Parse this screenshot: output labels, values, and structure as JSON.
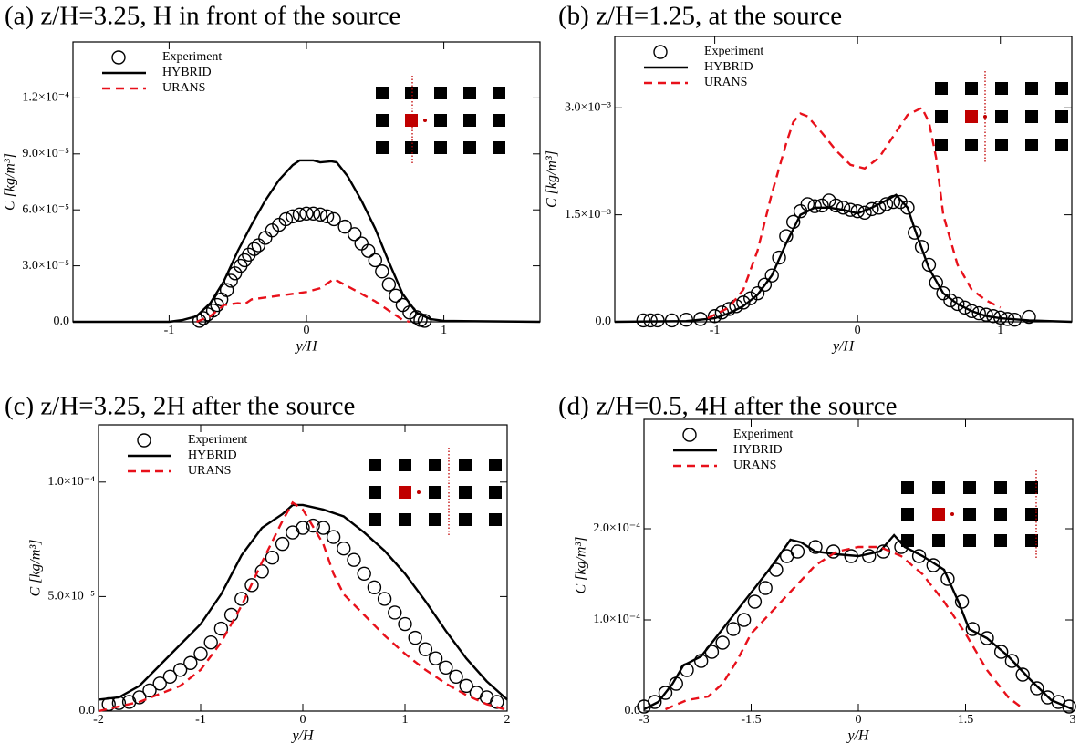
{
  "chart_data": [
    {
      "type": "line",
      "title": "(a) z/H=3.25, H in front of the source",
      "xlabel": "y/H",
      "ylabel": "C [kg/m³]",
      "xlim": [
        -1.7,
        1.7
      ],
      "xticks": [
        -1,
        0,
        1
      ],
      "ylim": [
        0,
        0.00015
      ],
      "yticks": [
        {
          "value": 0,
          "label": "0.0"
        },
        {
          "value": 3e-05,
          "label": "3.0×10⁻⁵"
        },
        {
          "value": 6e-05,
          "label": "6.0×10⁻⁵"
        },
        {
          "value": 9e-05,
          "label": "9.0×10⁻⁵"
        },
        {
          "value": 0.00012,
          "label": "1.2×10⁻⁴"
        }
      ],
      "series": [
        {
          "name": "Experiment",
          "color": "#000000",
          "linestyle": "none",
          "marker": "circle",
          "x": [
            -0.78,
            -0.75,
            -0.72,
            -0.68,
            -0.65,
            -0.62,
            -0.58,
            -0.55,
            -0.52,
            -0.48,
            -0.45,
            -0.42,
            -0.38,
            -0.35,
            -0.3,
            -0.25,
            -0.2,
            -0.15,
            -0.1,
            -0.05,
            0,
            0.05,
            0.1,
            0.15,
            0.2,
            0.28,
            0.35,
            0.4,
            0.45,
            0.5,
            0.55,
            0.6,
            0.65,
            0.7,
            0.75,
            0.8,
            0.83,
            0.86
          ],
          "values": [
            5e-07,
            2e-06,
            4e-06,
            6e-06,
            9e-06,
            1.2e-05,
            1.7e-05,
            2.2e-05,
            2.6e-05,
            3e-05,
            3.3e-05,
            3.6e-05,
            3.9e-05,
            4.1e-05,
            4.5e-05,
            4.9e-05,
            5.2e-05,
            5.5e-05,
            5.65e-05,
            5.75e-05,
            5.8e-05,
            5.8e-05,
            5.75e-05,
            5.65e-05,
            5.5e-05,
            5.1e-05,
            4.7e-05,
            4.2e-05,
            3.8e-05,
            3.3e-05,
            2.7e-05,
            2e-05,
            1.4e-05,
            9e-06,
            5e-06,
            2.5e-06,
            1e-06,
            5e-07
          ]
        },
        {
          "name": "HYBRID",
          "color": "#000000",
          "linestyle": "solid",
          "marker": "none",
          "x": [
            -1.7,
            -1,
            -0.9,
            -0.8,
            -0.7,
            -0.6,
            -0.5,
            -0.4,
            -0.3,
            -0.2,
            -0.1,
            -0.05,
            0.05,
            0.1,
            0.18,
            0.22,
            0.3,
            0.4,
            0.5,
            0.6,
            0.7,
            0.8,
            0.9,
            1,
            1.7
          ],
          "values": [
            0,
            0,
            1e-06,
            3e-06,
            1e-05,
            2.2e-05,
            3.8e-05,
            5.2e-05,
            6.5e-05,
            7.6e-05,
            8.4e-05,
            8.65e-05,
            8.65e-05,
            8.55e-05,
            8.6e-05,
            8.55e-05,
            7.8e-05,
            6.5e-05,
            5e-05,
            3.2e-05,
            1.5e-05,
            5e-06,
            1.5e-06,
            5e-07,
            0
          ]
        },
        {
          "name": "URANS",
          "color": "#e8101a",
          "linestyle": "dashed",
          "marker": "none",
          "x": [
            -0.8,
            -0.7,
            -0.6,
            -0.5,
            -0.45,
            -0.4,
            -0.2,
            0,
            0.1,
            0.2,
            0.3,
            0.4,
            0.5,
            0.6,
            0.7,
            0.75
          ],
          "values": [
            0,
            3e-06,
            9e-06,
            1e-05,
            9.5e-06,
            1.2e-05,
            1.4e-05,
            1.6e-05,
            1.8e-05,
            2.3e-05,
            1.9e-05,
            1.5e-05,
            1.1e-05,
            6e-06,
            1e-06,
            0
          ]
        }
      ]
    },
    {
      "type": "line",
      "title": "(b) z/H=1.25, at the source",
      "xlabel": "y/H",
      "ylabel": "C [kg/m³]",
      "xlim": [
        -1.7,
        1.5
      ],
      "xticks": [
        -1,
        0,
        1
      ],
      "ylim": [
        0,
        0.004
      ],
      "yticks": [
        {
          "value": 0,
          "label": "0.0"
        },
        {
          "value": 0.0015,
          "label": "1.5×10⁻³"
        },
        {
          "value": 0.003,
          "label": "3.0×10⁻³"
        }
      ],
      "series": [
        {
          "name": "Experiment",
          "color": "#000000",
          "linestyle": "none",
          "marker": "circle",
          "x": [
            -1.5,
            -1.45,
            -1.4,
            -1.3,
            -1.2,
            -1.1,
            -1.0,
            -0.95,
            -0.9,
            -0.85,
            -0.8,
            -0.75,
            -0.7,
            -0.65,
            -0.6,
            -0.55,
            -0.5,
            -0.45,
            -0.4,
            -0.35,
            -0.3,
            -0.25,
            -0.2,
            -0.15,
            -0.1,
            -0.05,
            0,
            0.05,
            0.1,
            0.15,
            0.2,
            0.25,
            0.3,
            0.35,
            0.4,
            0.45,
            0.5,
            0.55,
            0.6,
            0.65,
            0.7,
            0.75,
            0.8,
            0.85,
            0.9,
            0.95,
            1.0,
            1.05,
            1.1,
            1.2
          ],
          "values": [
            2e-05,
            2e-05,
            2e-05,
            2e-05,
            3e-05,
            4e-05,
            8e-05,
            0.00013,
            0.00018,
            0.00022,
            0.00027,
            0.00033,
            0.0004,
            0.00052,
            0.00065,
            0.0009,
            0.0012,
            0.0014,
            0.00155,
            0.00165,
            0.00162,
            0.00163,
            0.0017,
            0.00163,
            0.0016,
            0.00157,
            0.00155,
            0.00153,
            0.00158,
            0.0016,
            0.00165,
            0.00168,
            0.00168,
            0.0016,
            0.00125,
            0.00105,
            0.0008,
            0.00055,
            0.0004,
            0.0003,
            0.00025,
            0.0002,
            0.00015,
            0.00012,
            0.0001,
            8e-05,
            6e-05,
            4e-05,
            3e-05,
            7e-05
          ]
        },
        {
          "name": "HYBRID",
          "color": "#000000",
          "linestyle": "solid",
          "marker": "none",
          "x": [
            -1.7,
            -1.2,
            -1,
            -0.9,
            -0.8,
            -0.7,
            -0.6,
            -0.5,
            -0.4,
            -0.3,
            -0.2,
            -0.1,
            0,
            0.1,
            0.2,
            0.27,
            0.35,
            0.4,
            0.5,
            0.6,
            0.7,
            0.8,
            0.9,
            1,
            1.2,
            1.5
          ],
          "values": [
            0,
            1e-05,
            5e-05,
            0.00012,
            0.00022,
            0.00038,
            0.00065,
            0.0011,
            0.0015,
            0.0016,
            0.0016,
            0.00157,
            0.00152,
            0.0016,
            0.0017,
            0.00178,
            0.0016,
            0.0013,
            0.00075,
            0.0004,
            0.00025,
            0.00015,
            8e-05,
            5e-05,
            2e-05,
            0
          ]
        },
        {
          "name": "URANS",
          "color": "#e8101a",
          "linestyle": "dashed",
          "marker": "none",
          "x": [
            -1.05,
            -0.9,
            -0.8,
            -0.7,
            -0.6,
            -0.5,
            -0.45,
            -0.4,
            -0.35,
            -0.25,
            -0.15,
            -0.05,
            0.05,
            0.15,
            0.25,
            0.35,
            0.45,
            0.5,
            0.55,
            0.6,
            0.7,
            0.8,
            0.9,
            1.0
          ],
          "values": [
            5e-05,
            0.0002,
            0.00045,
            0.001,
            0.0018,
            0.0025,
            0.0028,
            0.00292,
            0.00288,
            0.00265,
            0.0024,
            0.0022,
            0.00215,
            0.0023,
            0.0026,
            0.0029,
            0.003,
            0.0028,
            0.0023,
            0.0015,
            0.0008,
            0.00045,
            0.0003,
            0.0002
          ]
        }
      ]
    },
    {
      "type": "line",
      "title": "(c) z/H=3.25, 2H after the source",
      "xlabel": "y/H",
      "ylabel": "C [kg/m³]",
      "xlim": [
        -2,
        2
      ],
      "xticks": [
        -2,
        -1,
        0,
        1,
        2
      ],
      "ylim": [
        0,
        0.000125
      ],
      "yticks": [
        {
          "value": 0,
          "label": "0.0"
        },
        {
          "value": 5e-05,
          "label": "5.0×10⁻⁵"
        },
        {
          "value": 0.0001,
          "label": "1.0×10⁻⁴"
        }
      ],
      "series": [
        {
          "name": "Experiment",
          "color": "#000000",
          "linestyle": "none",
          "marker": "circle",
          "x": [
            -1.9,
            -1.8,
            -1.7,
            -1.6,
            -1.5,
            -1.4,
            -1.3,
            -1.2,
            -1.1,
            -1.0,
            -0.9,
            -0.8,
            -0.7,
            -0.6,
            -0.5,
            -0.4,
            -0.3,
            -0.2,
            -0.1,
            0,
            0.1,
            0.2,
            0.3,
            0.4,
            0.5,
            0.6,
            0.7,
            0.8,
            0.9,
            1.0,
            1.1,
            1.2,
            1.3,
            1.4,
            1.5,
            1.6,
            1.7,
            1.8,
            1.9
          ],
          "values": [
            3e-06,
            3.5e-06,
            4e-06,
            6e-06,
            9e-06,
            1.2e-05,
            1.5e-05,
            1.8e-05,
            2.1e-05,
            2.5e-05,
            3e-05,
            3.6e-05,
            4.2e-05,
            4.9e-05,
            5.5e-05,
            6.1e-05,
            6.7e-05,
            7.3e-05,
            7.8e-05,
            8e-05,
            8.1e-05,
            8e-05,
            7.6e-05,
            7.1e-05,
            6.6e-05,
            6e-05,
            5.4e-05,
            4.9e-05,
            4.3e-05,
            3.8e-05,
            3.2e-05,
            2.7e-05,
            2.3e-05,
            1.9e-05,
            1.5e-05,
            1.1e-05,
            8e-06,
            6e-06,
            4e-06
          ]
        },
        {
          "name": "HYBRID",
          "color": "#000000",
          "linestyle": "solid",
          "marker": "none",
          "x": [
            -2,
            -1.8,
            -1.6,
            -1.4,
            -1.2,
            -1.0,
            -0.8,
            -0.6,
            -0.4,
            -0.2,
            -0.1,
            0,
            0.2,
            0.4,
            0.6,
            0.8,
            1.0,
            1.2,
            1.4,
            1.6,
            1.8,
            2.0
          ],
          "values": [
            5e-06,
            6e-06,
            1.1e-05,
            2e-05,
            2.9e-05,
            3.8e-05,
            5.1e-05,
            6.8e-05,
            8e-05,
            8.6e-05,
            9e-05,
            9e-05,
            8.8e-05,
            8.5e-05,
            7.8e-05,
            7e-05,
            6e-05,
            4.8e-05,
            3.5e-05,
            2.3e-05,
            1.3e-05,
            5e-06
          ]
        },
        {
          "name": "URANS",
          "color": "#e8101a",
          "linestyle": "dashed",
          "marker": "none",
          "x": [
            -2,
            -1.6,
            -1.2,
            -1.0,
            -0.8,
            -0.6,
            -0.4,
            -0.2,
            -0.1,
            0,
            0.2,
            0.3,
            0.4,
            0.6,
            0.8,
            1.0,
            1.2,
            1.4,
            1.6,
            1.8,
            2.0
          ],
          "values": [
            0,
            4e-06,
            1.1e-05,
            1.8e-05,
            3e-05,
            4.6e-05,
            6.5e-05,
            8.3e-05,
            9.1e-05,
            8.8e-05,
            7.3e-05,
            6e-05,
            5.1e-05,
            4.2e-05,
            3.3e-05,
            2.5e-05,
            1.8e-05,
            1.2e-05,
            7e-06,
            3e-06,
            5e-07
          ]
        }
      ]
    },
    {
      "type": "line",
      "title": "(d) z/H=0.5, 4H after the source",
      "xlabel": "y/H",
      "ylabel": "C [kg/m³]",
      "xlim": [
        -3,
        3
      ],
      "xticks": [
        -3,
        -1.5,
        0,
        1.5,
        3
      ],
      "ylim": [
        0,
        0.00032
      ],
      "yticks": [
        {
          "value": 0,
          "label": "0.0"
        },
        {
          "value": 0.0001,
          "label": "1.0×10⁻⁴"
        },
        {
          "value": 0.0002,
          "label": "2.0×10⁻⁴"
        }
      ],
      "series": [
        {
          "name": "Experiment",
          "color": "#000000",
          "linestyle": "none",
          "marker": "circle",
          "x": [
            -3,
            -2.85,
            -2.7,
            -2.55,
            -2.4,
            -2.2,
            -2.05,
            -1.9,
            -1.75,
            -1.6,
            -1.45,
            -1.3,
            -1.15,
            -1.0,
            -0.85,
            -0.6,
            -0.35,
            -0.1,
            0.15,
            0.35,
            0.6,
            0.85,
            1.05,
            1.25,
            1.45,
            1.6,
            1.8,
            2.0,
            2.15,
            2.3,
            2.5,
            2.65,
            2.8,
            2.95
          ],
          "values": [
            5e-06,
            1e-05,
            2e-05,
            3e-05,
            4.5e-05,
            5.5e-05,
            6.5e-05,
            7.5e-05,
            9e-05,
            0.0001,
            0.00012,
            0.000135,
            0.000155,
            0.00017,
            0.000175,
            0.00018,
            0.000175,
            0.00017,
            0.00017,
            0.000175,
            0.00018,
            0.00017,
            0.00016,
            0.000145,
            0.00012,
            9e-05,
            8e-05,
            6.5e-05,
            5.5e-05,
            4e-05,
            2.5e-05,
            1.5e-05,
            1e-05,
            5e-06
          ]
        },
        {
          "name": "HYBRID",
          "color": "#000000",
          "linestyle": "solid",
          "marker": "none",
          "x": [
            -3,
            -2.8,
            -2.6,
            -2.45,
            -2.2,
            -2.0,
            -1.8,
            -1.5,
            -1.2,
            -0.95,
            -0.8,
            -0.6,
            -0.3,
            0,
            0.3,
            0.5,
            0.65,
            0.9,
            1.2,
            1.4,
            1.55,
            1.8,
            2.1,
            2.4,
            2.7,
            3
          ],
          "values": [
            2e-06,
            1e-05,
            3e-05,
            5e-05,
            6e-05,
            8e-05,
            0.0001,
            0.00013,
            0.00016,
            0.000188,
            0.000185,
            0.000175,
            0.000172,
            0.00017,
            0.000175,
            0.000193,
            0.00018,
            0.00017,
            0.000155,
            0.00012,
            9e-05,
            8e-05,
            6e-05,
            3.5e-05,
            1.2e-05,
            2e-06
          ]
        },
        {
          "name": "URANS",
          "color": "#e8101a",
          "linestyle": "dashed",
          "marker": "none",
          "x": [
            -2.7,
            -2.4,
            -2.1,
            -1.9,
            -1.7,
            -1.5,
            -1.2,
            -0.9,
            -0.6,
            -0.3,
            0,
            0.3,
            0.6,
            0.9,
            1.2,
            1.5,
            1.8,
            2.1,
            2.3
          ],
          "values": [
            2e-06,
            1.2e-05,
            1.6e-05,
            3e-05,
            5.5e-05,
            8.5e-05,
            0.00011,
            0.000135,
            0.00016,
            0.000175,
            0.00018,
            0.00018,
            0.00017,
            0.00015,
            0.00012,
            8.5e-05,
            4.5e-05,
            1.5e-05,
            3e-06
          ]
        }
      ]
    }
  ]
}
